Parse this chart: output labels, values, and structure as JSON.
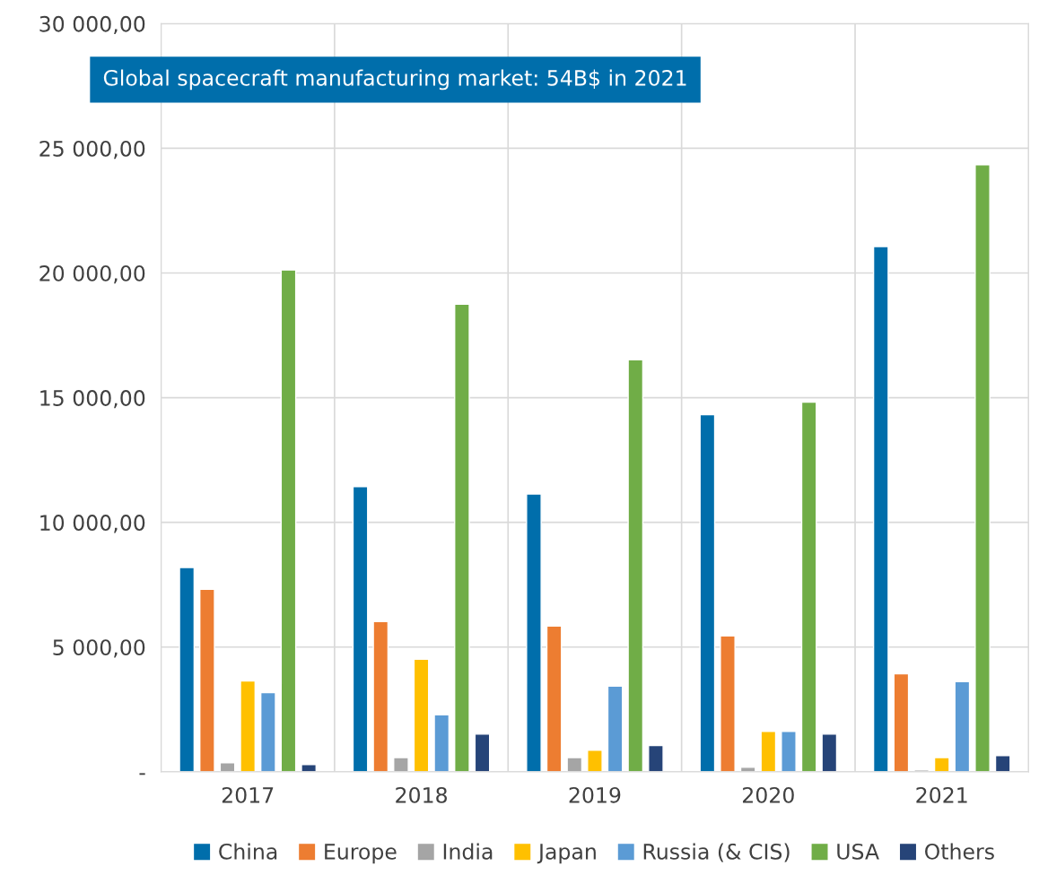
{
  "chart_data": {
    "type": "bar",
    "categories": [
      "2017",
      "2018",
      "2019",
      "2020",
      "2021"
    ],
    "series": [
      {
        "name": "China",
        "color": "#006eab",
        "values": [
          8190,
          11430,
          11140,
          14320,
          21060
        ]
      },
      {
        "name": "Europe",
        "color": "#ed7d31",
        "values": [
          7320,
          6020,
          5840,
          5450,
          3930
        ]
      },
      {
        "name": "India",
        "color": "#a5a5a5",
        "values": [
          360,
          570,
          570,
          180,
          70
        ]
      },
      {
        "name": "Japan",
        "color": "#ffc000",
        "values": [
          3640,
          4510,
          860,
          1620,
          570
        ]
      },
      {
        "name": "Russia (& CIS)",
        "color": "#5b9bd5",
        "values": [
          3170,
          2280,
          3430,
          1620,
          3610
        ]
      },
      {
        "name": "USA",
        "color": "#70ad47",
        "values": [
          20120,
          18750,
          16520,
          14820,
          24340
        ]
      },
      {
        "name": "Others",
        "color": "#264478",
        "values": [
          290,
          1510,
          1050,
          1510,
          650
        ]
      }
    ],
    "ylim": [
      0,
      30000
    ],
    "yticks": [
      {
        "value": 0,
        "label": "-"
      },
      {
        "value": 5000,
        "label": "5 000,00"
      },
      {
        "value": 10000,
        "label": "10 000,00"
      },
      {
        "value": 15000,
        "label": "15 000,00"
      },
      {
        "value": 20000,
        "label": "20 000,00"
      },
      {
        "value": 25000,
        "label": "25 000,00"
      },
      {
        "value": 30000,
        "label": "30 000,00"
      }
    ],
    "annotations": [
      "Global spacecraft manufacturing market: 54B$ in 2021"
    ],
    "grid": true,
    "legend": "bottom"
  }
}
